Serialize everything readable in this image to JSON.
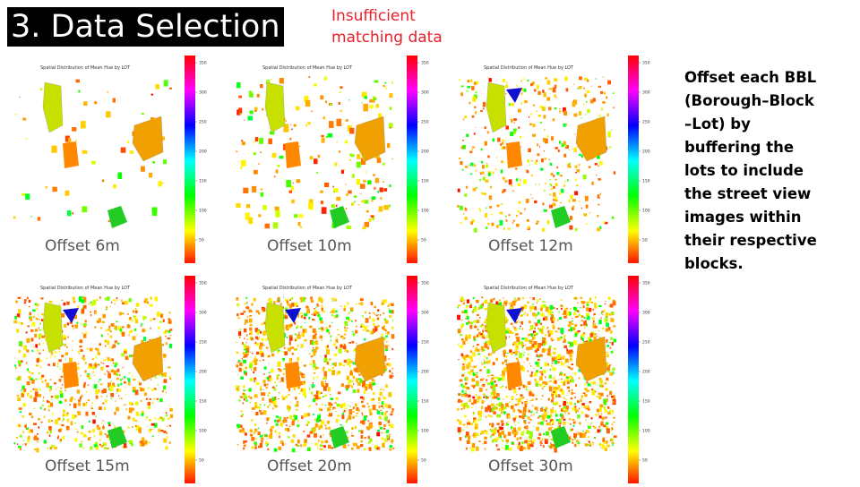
{
  "header": {
    "title": "3. Data Selection",
    "note": [
      "Insufficient",
      "matching data"
    ]
  },
  "panels": [
    {
      "map_title": "Spatial Distribution of Mean Hue by LOT",
      "label": "Offset 6m"
    },
    {
      "map_title": "Spatial Distribution of Mean Hue by LOT",
      "label": "Offset 10m"
    },
    {
      "map_title": "Spatial Distribution of Mean Hue by LOT",
      "label": "Offset 12m"
    },
    {
      "map_title": "Spatial Distribution of Mean Hue by LOT",
      "label": "Offset 15m"
    },
    {
      "map_title": "Spatial Distribution of Mean Hue by LOT",
      "label": "Offset 20m"
    },
    {
      "map_title": "Spatial Distribution of Mean Hue by LOT",
      "label": "Offset 30m"
    }
  ],
  "colorbar_ticks": [
    50,
    100,
    150,
    200,
    250,
    300,
    350
  ],
  "description": [
    "Offset each BBL",
    "(Borough–Block",
    "–Lot) by",
    "buffering the",
    "lots to include",
    "the street view",
    "images within",
    "their respective",
    "blocks."
  ]
}
